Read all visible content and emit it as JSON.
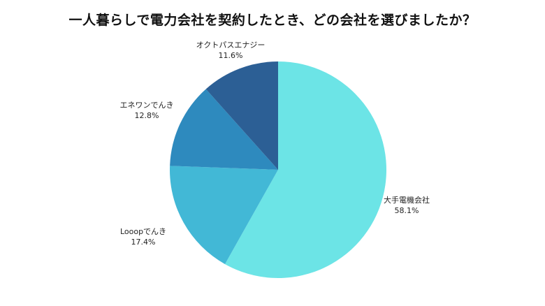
{
  "chart_data": {
    "type": "pie",
    "title": "一人暮らしで電力会社を契約したとき、どの会社を選びましたか？",
    "slices": [
      {
        "label": "大手電機会社",
        "value": 58.1,
        "display": "58.1%",
        "color": "#6ce4e6"
      },
      {
        "label": "Looopでんき",
        "value": 17.4,
        "display": "17.4%",
        "color": "#42b8d6"
      },
      {
        "label": "エネワンでんき",
        "value": 12.8,
        "display": "12.8%",
        "color": "#2e8abe"
      },
      {
        "label": "オクトパスエナジー",
        "value": 11.6,
        "display": "11.6%",
        "color": "#2c5f95"
      }
    ],
    "start_position": "top",
    "direction": "clockwise"
  }
}
